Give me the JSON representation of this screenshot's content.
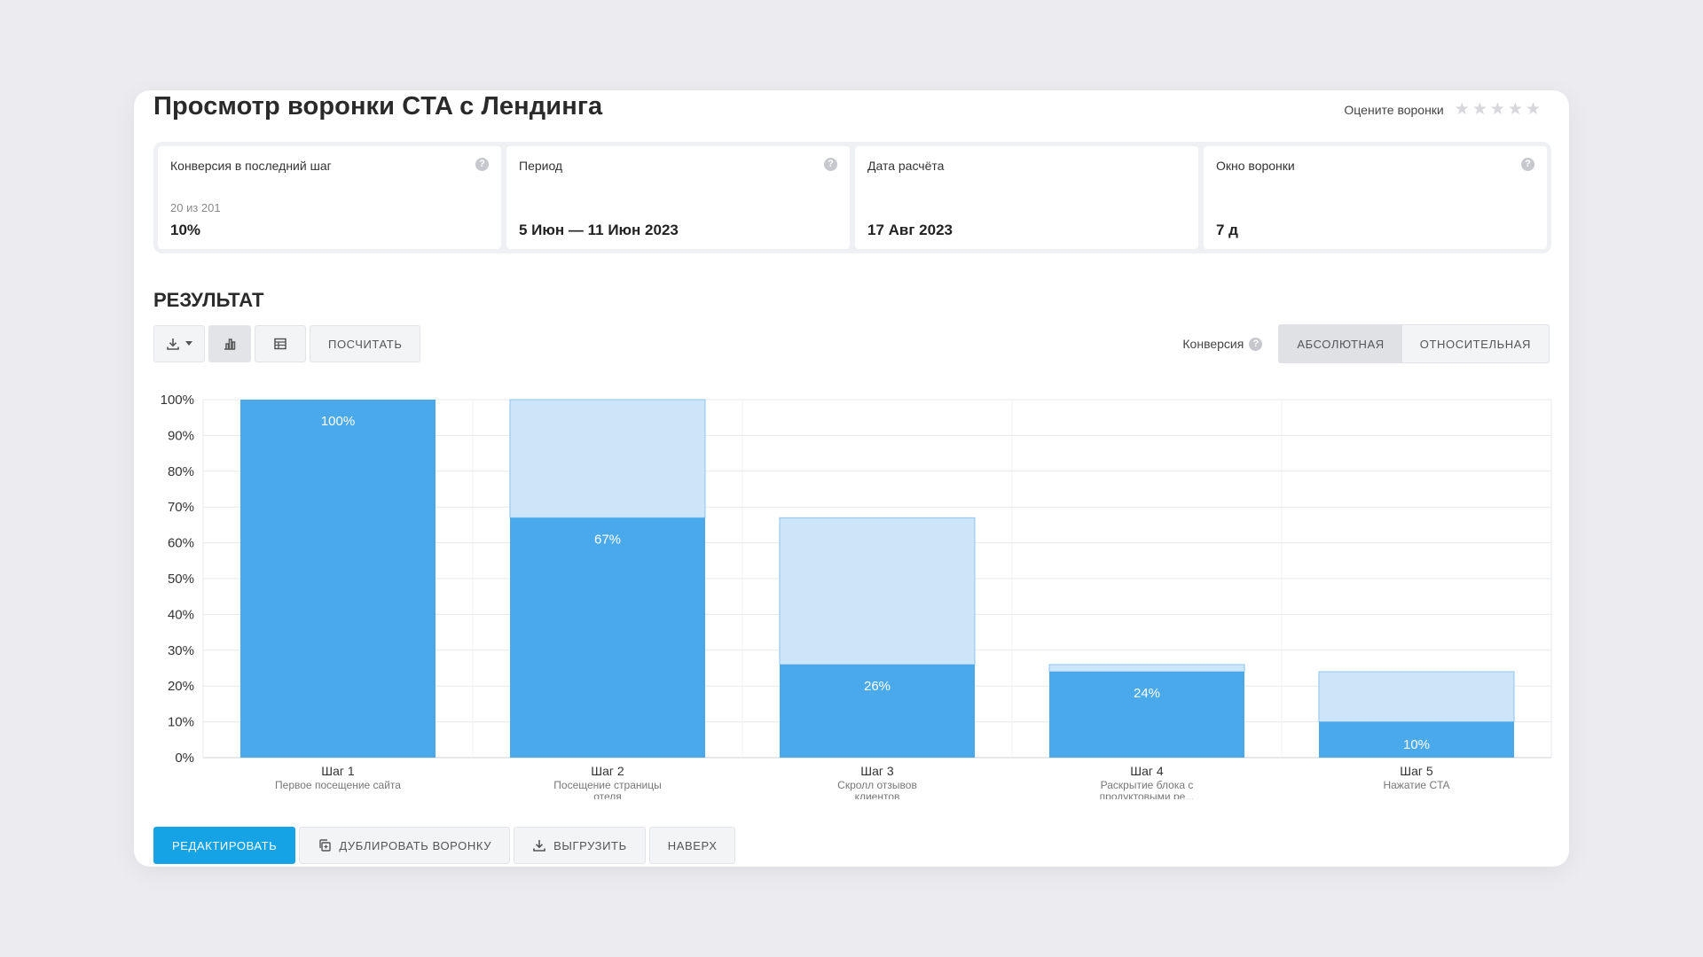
{
  "header": {
    "title": "Просмотр воронки CTA с Лендинга",
    "rate_label": "Оцените воронки",
    "rating": 0,
    "rating_max": 5
  },
  "stats": [
    {
      "label": "Конверсия в последний шаг",
      "sub": "20 из 201",
      "value": "10%",
      "help": "?"
    },
    {
      "label": "Период",
      "sub": "",
      "value": "5 Июн — 11 Июн 2023",
      "help": "?"
    },
    {
      "label": "Дата расчёта",
      "sub": "",
      "value": "17 Авг 2023",
      "help": ""
    },
    {
      "label": "Окно воронки",
      "sub": "",
      "value": "7 д",
      "help": "?"
    }
  ],
  "result": {
    "title": "РЕЗУЛЬТАТ",
    "calculate_label": "ПОСЧИТАТЬ",
    "conversion_label": "Конверсия",
    "help": "?",
    "modes": [
      "АБСОЛЮТНАЯ",
      "ОТНОСИТЕЛЬНАЯ"
    ],
    "active_mode": "АБСОЛЮТНАЯ"
  },
  "chart_data": {
    "type": "bar",
    "categories": [
      "Шаг 1",
      "Шаг 2",
      "Шаг 3",
      "Шаг 4",
      "Шаг 5"
    ],
    "subtitles": [
      "Первое посещение сайта",
      "Посещение страницы отеля",
      "Скролл отзывов клиентов",
      "Раскрытие блока с продуктовыми ре...",
      "Нажатие CTA"
    ],
    "values": [
      100,
      67,
      26,
      24,
      10
    ],
    "previous_values": [
      100,
      100,
      67,
      26,
      24
    ],
    "labels": [
      "100%",
      "67%",
      "26%",
      "24%",
      "10%"
    ],
    "yticks": [
      "0%",
      "10%",
      "20%",
      "30%",
      "40%",
      "50%",
      "60%",
      "70%",
      "80%",
      "90%",
      "100%"
    ],
    "ylim": [
      0,
      100
    ],
    "grid": true,
    "colors": {
      "bar": "#4aa9eb",
      "ghost": "#cce5f8",
      "ghost_border": "#8dc5ef"
    }
  },
  "actions": {
    "edit": "РЕДАКТИРОВАТЬ",
    "duplicate": "ДУБЛИРОВАТЬ ВОРОНКУ",
    "export": "ВЫГРУЗИТЬ",
    "top": "НАВЕРХ"
  }
}
